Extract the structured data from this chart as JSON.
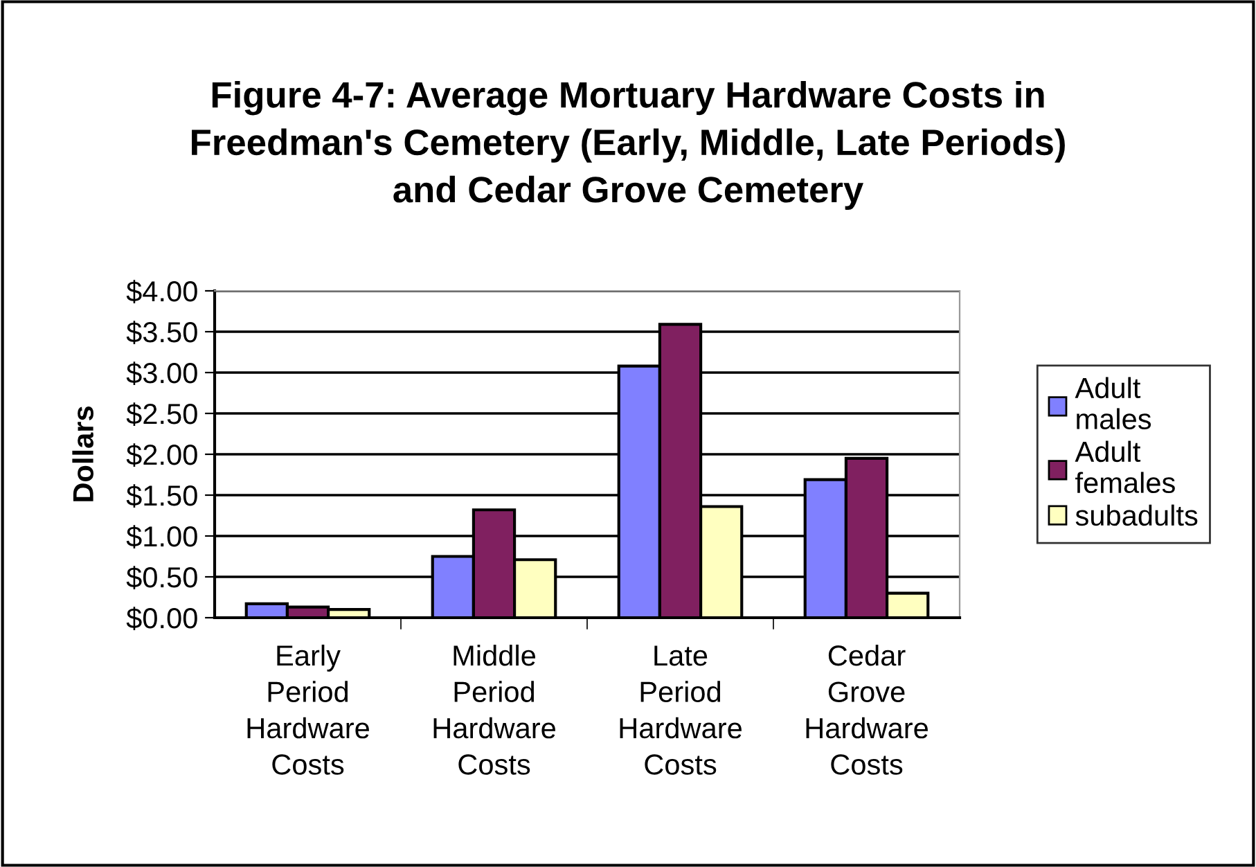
{
  "chart_data": {
    "type": "bar",
    "title": "Figure 4-7: Average Mortuary Hardware Costs in\nFreedman's Cemetery (Early, Middle, Late Periods)\nand Cedar Grove Cemetery",
    "ylabel": "Dollars",
    "categories": [
      "Early Period Hardware Costs",
      "Middle Period Hardware Costs",
      "Late Period Hardware Costs",
      "Cedar Grove Hardware Costs"
    ],
    "series": [
      {
        "name": "Adult males",
        "color": "#8080ff",
        "values": [
          0.17,
          0.75,
          3.08,
          1.69
        ]
      },
      {
        "name": "Adult females",
        "color": "#802060",
        "values": [
          0.13,
          1.32,
          3.59,
          1.95
        ]
      },
      {
        "name": "subadults",
        "color": "#ffffc0",
        "values": [
          0.1,
          0.71,
          1.36,
          0.3
        ]
      }
    ],
    "ylim": [
      0,
      4
    ],
    "yticks": [
      {
        "value": 0,
        "label": "$0.00"
      },
      {
        "value": 0.5,
        "label": "$0.50"
      },
      {
        "value": 1,
        "label": "$1.00"
      },
      {
        "value": 1.5,
        "label": "$1.50"
      },
      {
        "value": 2,
        "label": "$2.00"
      },
      {
        "value": 2.5,
        "label": "$2.50"
      },
      {
        "value": 3,
        "label": "$3.00"
      },
      {
        "value": 3.5,
        "label": "$3.50"
      },
      {
        "value": 4,
        "label": "$4.00"
      }
    ],
    "grid": "y",
    "legend": "right"
  }
}
